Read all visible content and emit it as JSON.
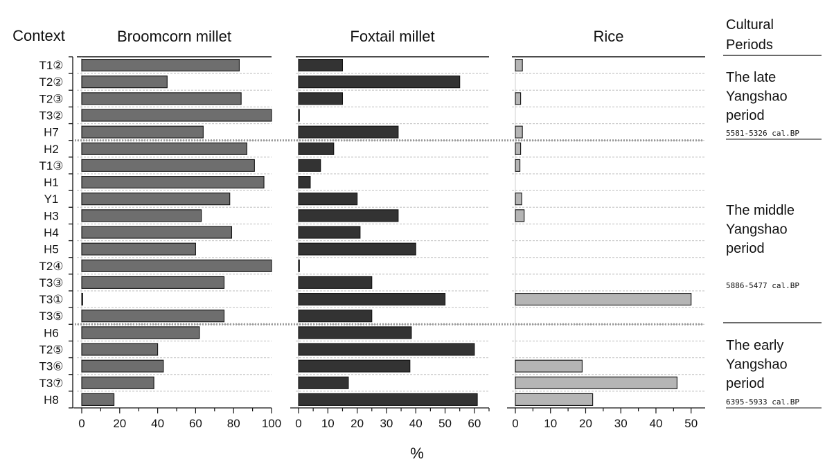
{
  "chart_data": {
    "type": "bar",
    "orientation": "horizontal",
    "header": "Context",
    "xlabel": "%",
    "categories": [
      "T1②",
      "T2②",
      "T2③",
      "T3②",
      "H7",
      "H2",
      "T1③",
      "H1",
      "Y1",
      "H3",
      "H4",
      "H5",
      "T2④",
      "T3③",
      "T3①",
      "T3⑤",
      "H6",
      "T2⑤",
      "T3⑥",
      "T3⑦",
      "H8"
    ],
    "series": [
      {
        "name": "Broomcorn millet",
        "color": "#6e6e6e",
        "xlim": [
          0,
          100
        ],
        "ticks": [
          0,
          20,
          40,
          60,
          80,
          100
        ],
        "values": [
          83,
          45,
          84,
          100,
          64,
          87,
          91,
          96,
          78,
          63,
          79,
          60,
          100,
          75,
          0.5,
          75,
          62,
          40,
          43,
          38,
          17
        ]
      },
      {
        "name": "Foxtail millet",
        "color": "#333333",
        "xlim": [
          0,
          65
        ],
        "ticks": [
          0,
          10,
          20,
          30,
          40,
          50,
          60
        ],
        "values": [
          15,
          55,
          15,
          0.3,
          34,
          12,
          7.5,
          4,
          20,
          34,
          21,
          40,
          0.3,
          25,
          50,
          25,
          38.5,
          60,
          38,
          17,
          61
        ]
      },
      {
        "name": "Rice",
        "color": "#b5b5b5",
        "xlim": [
          0,
          54
        ],
        "ticks": [
          0,
          10,
          20,
          30,
          40,
          50
        ],
        "values": [
          2,
          0,
          1.5,
          0,
          2,
          1.5,
          1.3,
          0,
          1.8,
          2.5,
          0,
          0,
          0,
          0,
          50,
          0,
          0,
          0,
          19,
          46,
          22
        ]
      }
    ],
    "grid": true,
    "periods_header": [
      "Cultural",
      "Periods"
    ],
    "periods": [
      {
        "lines": [
          "The late",
          "Yangshao",
          "period"
        ],
        "dates": "5581-5326 cal.BP"
      },
      {
        "lines": [
          "The middle",
          "Yangshao",
          "period"
        ],
        "dates": "5886-5477 cal.BP"
      },
      {
        "lines": [
          "The early",
          "Yangshao",
          "period"
        ],
        "dates": "6395-5933 cal.BP"
      }
    ]
  }
}
